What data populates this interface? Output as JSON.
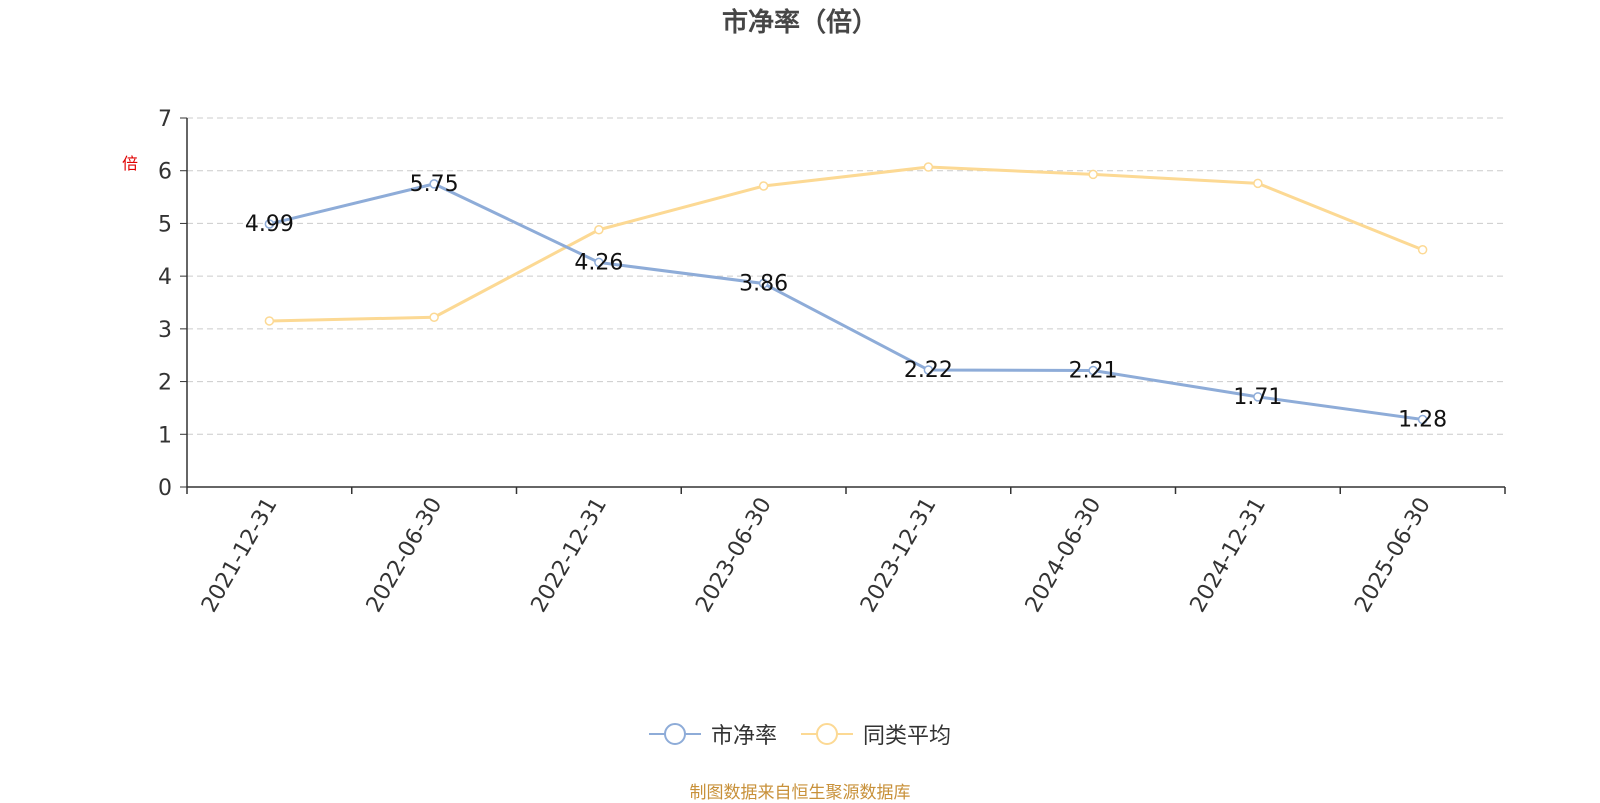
{
  "chart_data": {
    "type": "line",
    "title": "市净率（倍）",
    "ylabel": "倍",
    "xlabel": "",
    "ylim": [
      0,
      7
    ],
    "yticks": [
      0,
      1,
      2,
      3,
      4,
      5,
      6,
      7
    ],
    "categories": [
      "2021-12-31",
      "2022-06-30",
      "2022-12-31",
      "2023-06-30",
      "2023-12-31",
      "2024-06-30",
      "2024-12-31",
      "2025-06-30"
    ],
    "grid": true,
    "legend_position": "bottom",
    "series": [
      {
        "name": "市净率",
        "color": "#8eacd8",
        "values": [
          4.99,
          5.75,
          4.26,
          3.86,
          2.22,
          2.21,
          1.71,
          1.28
        ],
        "show_labels": true
      },
      {
        "name": "同类平均",
        "color": "#fcd994",
        "values": [
          3.15,
          3.22,
          4.88,
          5.71,
          6.07,
          5.93,
          5.76,
          4.5
        ],
        "show_labels": false
      }
    ],
    "source": "制图数据来自恒生聚源数据库"
  }
}
